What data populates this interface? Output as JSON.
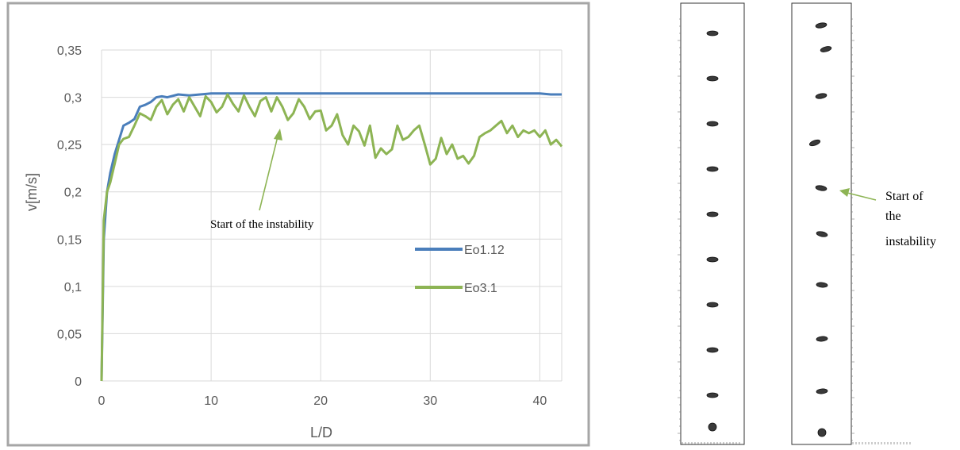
{
  "chart_data": {
    "type": "line",
    "xlabel": "L/D",
    "ylabel": "v[m/s]",
    "xlim": [
      0,
      42
    ],
    "ylim": [
      0,
      0.35
    ],
    "x_ticks": [
      "0",
      "10",
      "20",
      "30",
      "40"
    ],
    "y_ticks": [
      "0",
      "0,05",
      "0,1",
      "0,15",
      "0,2",
      "0,25",
      "0,3",
      "0,35"
    ],
    "grid": "vertical-and-horizontal",
    "legend_position": "right",
    "series": [
      {
        "name": "Eo1.12",
        "color": "#4a7ebb",
        "x": [
          0,
          0.2,
          0.5,
          0.8,
          1.2,
          1.6,
          2,
          2.5,
          3,
          3.5,
          4,
          4.5,
          5,
          5.5,
          6,
          7,
          8,
          9,
          10,
          12,
          15,
          20,
          25,
          30,
          35,
          40,
          41,
          42
        ],
        "y": [
          0,
          0.15,
          0.2,
          0.22,
          0.24,
          0.255,
          0.27,
          0.273,
          0.277,
          0.29,
          0.292,
          0.295,
          0.3,
          0.301,
          0.3,
          0.303,
          0.302,
          0.303,
          0.304,
          0.304,
          0.304,
          0.304,
          0.304,
          0.304,
          0.304,
          0.304,
          0.303,
          0.303
        ]
      },
      {
        "name": "Eo3.1",
        "color": "#8db454",
        "x": [
          0,
          0.2,
          0.5,
          0.8,
          1.2,
          1.6,
          2,
          2.5,
          3,
          3.5,
          4,
          4.5,
          5,
          5.5,
          6,
          6.5,
          7,
          7.5,
          8,
          8.5,
          9,
          9.5,
          10,
          10.5,
          11,
          11.5,
          12,
          12.5,
          13,
          13.5,
          14,
          14.5,
          15,
          15.5,
          16,
          16.5,
          17,
          17.5,
          18,
          18.5,
          19,
          19.5,
          20,
          20.5,
          21,
          21.5,
          22,
          22.5,
          23,
          23.5,
          24,
          24.5,
          25,
          25.5,
          26,
          26.5,
          27,
          27.5,
          28,
          28.5,
          29,
          29.5,
          30,
          30.5,
          31,
          31.5,
          32,
          32.5,
          33,
          33.5,
          34,
          34.5,
          35,
          35.5,
          36,
          36.5,
          37,
          37.5,
          38,
          38.5,
          39,
          39.5,
          40,
          40.5,
          41,
          41.5,
          42
        ],
        "y": [
          0,
          0.17,
          0.2,
          0.21,
          0.23,
          0.25,
          0.256,
          0.258,
          0.27,
          0.283,
          0.28,
          0.276,
          0.29,
          0.297,
          0.282,
          0.292,
          0.298,
          0.285,
          0.3,
          0.29,
          0.28,
          0.301,
          0.295,
          0.284,
          0.29,
          0.303,
          0.293,
          0.285,
          0.302,
          0.29,
          0.28,
          0.296,
          0.3,
          0.285,
          0.3,
          0.29,
          0.276,
          0.283,
          0.298,
          0.29,
          0.277,
          0.285,
          0.286,
          0.265,
          0.27,
          0.282,
          0.26,
          0.25,
          0.27,
          0.264,
          0.249,
          0.27,
          0.236,
          0.246,
          0.24,
          0.245,
          0.27,
          0.255,
          0.258,
          0.265,
          0.27,
          0.25,
          0.229,
          0.235,
          0.257,
          0.24,
          0.25,
          0.235,
          0.238,
          0.23,
          0.238,
          0.258,
          0.262,
          0.265,
          0.27,
          0.275,
          0.262,
          0.27,
          0.258,
          0.265,
          0.262,
          0.265,
          0.258,
          0.265,
          0.25,
          0.255,
          0.248
        ]
      }
    ],
    "annotations": [
      {
        "text": "Start of the instability",
        "x": 16.5,
        "y": 0.277
      }
    ]
  },
  "right_panel": {
    "annotation_lines": [
      "Start of",
      "the",
      "instability"
    ]
  },
  "colors": {
    "frame": "#a6a6a6",
    "grid": "#d9d9d9",
    "arrow": "#8db454"
  }
}
